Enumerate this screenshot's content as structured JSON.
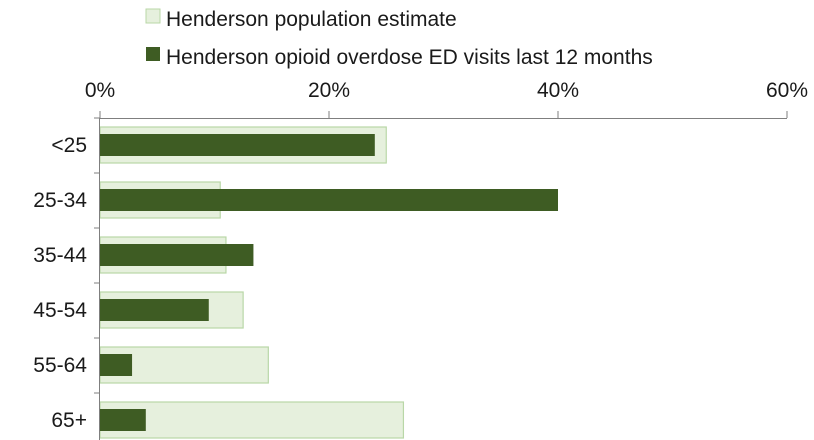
{
  "chart_data": {
    "type": "bar",
    "orientation": "horizontal",
    "categories": [
      "<25",
      "25-34",
      "35-44",
      "45-54",
      "55-64",
      "65+"
    ],
    "series": [
      {
        "name": "Henderson population estimate",
        "values": [
          25,
          10.5,
          11,
          12.5,
          14.7,
          26.5
        ],
        "color": "#e6f0dd",
        "border": "#b9d7a7"
      },
      {
        "name": "Henderson opioid overdose ED visits last 12 months",
        "values": [
          24,
          40,
          13.4,
          9.5,
          2.8,
          4
        ]
      }
    ],
    "xlim": [
      0,
      60
    ],
    "x_ticks": [
      "0%",
      "20%",
      "40%",
      "60%"
    ],
    "x_axis_position": "top",
    "legend_position": "top",
    "grid": false,
    "colors": {
      "population": "#e6f0dd",
      "population_border": "#b9d7a7",
      "visits": "#3e5c23",
      "axis": "#7f7f7f"
    }
  }
}
